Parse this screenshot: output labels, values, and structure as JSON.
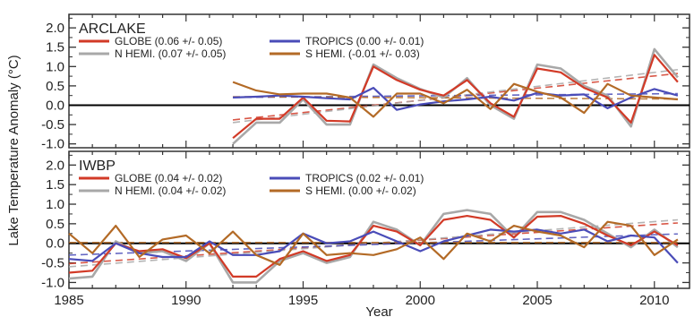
{
  "chart_data": {
    "type": "line",
    "xlabel": "Year",
    "ylabel": "Lake Temperature Anomaly (°C)",
    "xlim": [
      1985,
      2011.5
    ],
    "xticks": [
      1985,
      1990,
      1995,
      2000,
      2005,
      2010
    ],
    "colors": {
      "globe": "#d23a27",
      "nhemi": "#a8a8a8",
      "tropics": "#4a4cb8",
      "shemi": "#b36a26",
      "zero_line": "#000000",
      "frame": "#333333"
    },
    "panels": [
      {
        "title": "ARCLAKE",
        "ylim": [
          -1.1,
          2.35
        ],
        "yticks": [
          "2.0",
          "1.5",
          "1.0",
          "0.5",
          "0.0",
          "-0.5",
          "-1.0"
        ],
        "legend": {
          "globe": "GLOBE (0.06 +/- 0.05)",
          "nhemi": "N HEMI. (0.07 +/- 0.05)",
          "tropics": "TROPICS (0.00 +/- 0.01)",
          "shemi": "S HEMI. (-0.01 +/- 0.03)"
        },
        "series": [
          {
            "key": "nhemi",
            "x": [
              1992,
              1993,
              1994,
              1995,
              1996,
              1997,
              1998,
              1999,
              2000,
              2001,
              2002,
              2003,
              2004,
              2005,
              2006,
              2007,
              2008,
              2009,
              2010,
              2011
            ],
            "values": [
              -1.0,
              -0.45,
              -0.45,
              0.15,
              -0.5,
              -0.5,
              1.05,
              0.7,
              0.42,
              0.2,
              0.7,
              0.0,
              -0.35,
              1.05,
              0.95,
              0.5,
              0.25,
              -0.55,
              1.45,
              0.72
            ]
          },
          {
            "key": "globe",
            "x": [
              1992,
              1993,
              1994,
              1995,
              1996,
              1997,
              1998,
              1999,
              2000,
              2001,
              2002,
              2003,
              2004,
              2005,
              2006,
              2007,
              2008,
              2009,
              2010,
              2011
            ],
            "values": [
              -0.85,
              -0.35,
              -0.35,
              0.2,
              -0.4,
              -0.42,
              1.0,
              0.65,
              0.4,
              0.25,
              0.65,
              0.05,
              -0.3,
              0.95,
              0.85,
              0.45,
              0.2,
              -0.45,
              1.3,
              0.6
            ]
          },
          {
            "key": "tropics",
            "x": [
              1992,
              1993,
              1994,
              1995,
              1996,
              1997,
              1998,
              1999,
              2000,
              2001,
              2002,
              2003,
              2004,
              2005,
              2006,
              2007,
              2008,
              2009,
              2010,
              2011
            ],
            "values": [
              0.2,
              0.22,
              0.25,
              0.22,
              0.18,
              0.15,
              0.45,
              -0.12,
              0.02,
              0.1,
              0.15,
              0.22,
              0.12,
              0.32,
              0.25,
              0.28,
              -0.08,
              0.2,
              0.42,
              0.25
            ]
          },
          {
            "key": "shemi",
            "x": [
              1992,
              1993,
              1994,
              1995,
              1996,
              1997,
              1998,
              1999,
              2000,
              2001,
              2002,
              2003,
              2004,
              2005,
              2006,
              2007,
              2008,
              2009,
              2010,
              2011
            ],
            "values": [
              0.6,
              0.38,
              0.28,
              0.3,
              0.3,
              0.2,
              -0.3,
              0.3,
              0.3,
              0.05,
              0.4,
              -0.1,
              0.55,
              0.35,
              0.2,
              -0.2,
              0.55,
              0.25,
              0.2,
              0.15
            ]
          }
        ],
        "trends": [
          {
            "key": "globe",
            "from": [
              1992,
              -0.38
            ],
            "to": [
              2011,
              0.82
            ]
          },
          {
            "key": "nhemi",
            "from": [
              1992,
              -0.45
            ],
            "to": [
              2011,
              0.92
            ]
          },
          {
            "key": "tropics",
            "from": [
              1992,
              0.2
            ],
            "to": [
              2011,
              0.3
            ]
          },
          {
            "key": "shemi",
            "from": [
              1992,
              0.22
            ],
            "to": [
              2011,
              0.16
            ]
          }
        ]
      },
      {
        "title": "IWBP",
        "ylim": [
          -1.15,
          2.35
        ],
        "yticks": [
          "2.0",
          "1.5",
          "1.0",
          "0.5",
          "0.0",
          "-0.5",
          "-1.0"
        ],
        "legend": {
          "globe": "GLOBE (0.04 +/- 0.02)",
          "nhemi": "N HEMI. (0.04 +/- 0.02)",
          "tropics": "TROPICS (0.02 +/- 0.01)",
          "shemi": "S HEMI. (0.00 +/- 0.02)"
        },
        "series": [
          {
            "key": "nhemi",
            "x": [
              1985,
              1986,
              1987,
              1988,
              1989,
              1990,
              1991,
              1992,
              1993,
              1994,
              1995,
              1996,
              1997,
              1998,
              1999,
              2000,
              2001,
              2002,
              2003,
              2004,
              2005,
              2006,
              2007,
              2008,
              2009,
              2010,
              2011
            ],
            "values": [
              -0.9,
              -0.85,
              0.05,
              -0.25,
              -0.2,
              -0.45,
              0.0,
              -1.0,
              -1.0,
              -0.45,
              -0.25,
              -0.5,
              -0.35,
              0.55,
              0.35,
              -0.05,
              0.75,
              0.85,
              0.75,
              0.15,
              0.8,
              0.8,
              0.6,
              0.25,
              -0.1,
              0.35,
              -0.1
            ]
          },
          {
            "key": "globe",
            "x": [
              1985,
              1986,
              1987,
              1988,
              1989,
              1990,
              1991,
              1992,
              1993,
              1994,
              1995,
              1996,
              1997,
              1998,
              1999,
              2000,
              2001,
              2002,
              2003,
              2004,
              2005,
              2006,
              2007,
              2008,
              2009,
              2010,
              2011
            ],
            "values": [
              -0.75,
              -0.7,
              0.0,
              -0.2,
              -0.15,
              -0.38,
              0.0,
              -0.85,
              -0.85,
              -0.4,
              -0.2,
              -0.45,
              -0.3,
              0.45,
              0.3,
              -0.05,
              0.6,
              0.7,
              0.6,
              0.15,
              0.68,
              0.7,
              0.5,
              0.2,
              -0.05,
              0.3,
              -0.05
            ]
          },
          {
            "key": "tropics",
            "x": [
              1985,
              1986,
              1987,
              1988,
              1989,
              1990,
              1991,
              1992,
              1993,
              1994,
              1995,
              1996,
              1997,
              1998,
              1999,
              2000,
              2001,
              2002,
              2003,
              2004,
              2005,
              2006,
              2007,
              2008,
              2009,
              2010,
              2011
            ],
            "values": [
              -0.4,
              -0.45,
              0.0,
              -0.25,
              -0.35,
              -0.35,
              0.05,
              -0.3,
              -0.3,
              -0.2,
              0.25,
              0.0,
              0.05,
              0.3,
              0.05,
              -0.2,
              0.05,
              0.2,
              0.35,
              0.3,
              0.35,
              0.25,
              0.35,
              0.05,
              0.2,
              0.15,
              -0.5
            ]
          },
          {
            "key": "shemi",
            "x": [
              1985,
              1986,
              1987,
              1988,
              1989,
              1990,
              1991,
              1992,
              1993,
              1994,
              1995,
              1996,
              1997,
              1998,
              1999,
              2000,
              2001,
              2002,
              2003,
              2004,
              2005,
              2006,
              2007,
              2008,
              2009,
              2010,
              2011
            ],
            "values": [
              0.25,
              -0.25,
              0.45,
              -0.35,
              0.1,
              0.2,
              -0.25,
              0.3,
              -0.3,
              -0.55,
              0.25,
              -0.3,
              -0.25,
              -0.3,
              -0.15,
              0.15,
              -0.4,
              0.25,
              0.05,
              0.45,
              0.3,
              0.2,
              -0.1,
              0.55,
              0.45,
              -0.3,
              0.1
            ]
          }
        ],
        "trends": [
          {
            "key": "globe",
            "from": [
              1985,
              -0.52
            ],
            "to": [
              2011,
              0.52
            ]
          },
          {
            "key": "nhemi",
            "from": [
              1985,
              -0.6
            ],
            "to": [
              2011,
              0.6
            ]
          },
          {
            "key": "tropics",
            "from": [
              1985,
              -0.3
            ],
            "to": [
              2011,
              0.24
            ]
          },
          {
            "key": "shemi",
            "from": [
              1985,
              0.02
            ],
            "to": [
              2011,
              0.02
            ]
          }
        ]
      }
    ]
  }
}
